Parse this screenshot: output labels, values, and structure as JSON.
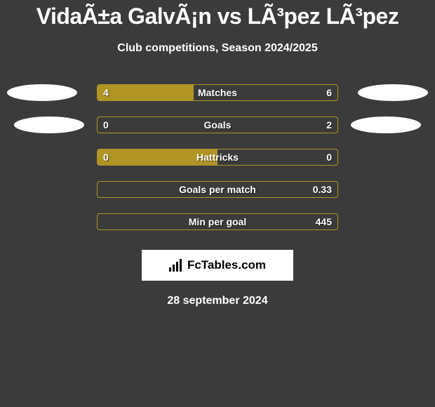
{
  "header": {
    "title": "VidaÃ±a GalvÃ¡n vs LÃ³pez LÃ³pez",
    "subtitle": "Club competitions, Season 2024/2025"
  },
  "colors": {
    "background": "#3b3b3c",
    "bar_fill": "#b09525",
    "bar_border": "#b09525",
    "text": "#ffffff",
    "text_shadow": "rgba(0,0,0,0.6)",
    "ellipse": "#ffffff",
    "logo_bg": "#ffffff",
    "logo_fg": "#000000"
  },
  "chart": {
    "bar_track_width": 344,
    "bar_track_height": 24,
    "row_gap": 22
  },
  "stats": [
    {
      "label": "Matches",
      "left_value": "4",
      "right_value": "6",
      "left_fill_pct": 40,
      "right_fill_pct": 0,
      "show_left_ellipse": true,
      "show_right_ellipse": true,
      "left_ellipse_offset": "first",
      "right_ellipse_offset": "first"
    },
    {
      "label": "Goals",
      "left_value": "0",
      "right_value": "2",
      "left_fill_pct": 0,
      "right_fill_pct": 0,
      "show_left_ellipse": true,
      "show_right_ellipse": true,
      "left_ellipse_offset": "second",
      "right_ellipse_offset": "second"
    },
    {
      "label": "Hattricks",
      "left_value": "0",
      "right_value": "0",
      "left_fill_pct": 50,
      "right_fill_pct": 0,
      "show_left_ellipse": false,
      "show_right_ellipse": false
    },
    {
      "label": "Goals per match",
      "left_value": "",
      "right_value": "0.33",
      "left_fill_pct": 0,
      "right_fill_pct": 0,
      "show_left_ellipse": false,
      "show_right_ellipse": false
    },
    {
      "label": "Min per goal",
      "left_value": "",
      "right_value": "445",
      "left_fill_pct": 0,
      "right_fill_pct": 0,
      "show_left_ellipse": false,
      "show_right_ellipse": false
    }
  ],
  "footer": {
    "logo_text": "FcTables.com",
    "date": "28 september 2024"
  }
}
